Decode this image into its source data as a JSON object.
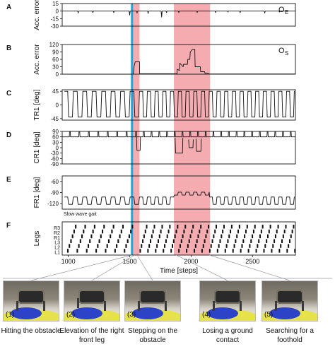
{
  "chart_data": {
    "type": "line",
    "xlabel": "Time [steps]",
    "xlim": [
      950,
      2850
    ],
    "xticks": [
      1000,
      1500,
      2000,
      2500
    ],
    "highlights": [
      {
        "from": 1510,
        "to": 1528,
        "color": "#21a4dc"
      },
      {
        "from": 1528,
        "to": 1580,
        "color": "#f4a3a8"
      },
      {
        "from": 1860,
        "to": 2155,
        "color": "#f4a3a8"
      }
    ],
    "panels": [
      {
        "letter": "A",
        "ylabel": "Acc. error",
        "inset_label": "O",
        "inset_sub": "E",
        "ylim": [
          -30,
          15
        ],
        "yticks": [
          15,
          0,
          -15,
          -30
        ],
        "baseline": 0,
        "events": [
          [
            1080,
            -4
          ],
          [
            1200,
            -3
          ],
          [
            1370,
            -3
          ],
          [
            1500,
            -8
          ],
          [
            1560,
            -4
          ],
          [
            1650,
            -5
          ],
          [
            1760,
            -12
          ],
          [
            1800,
            -3
          ],
          [
            1900,
            -3
          ],
          [
            2050,
            -3
          ],
          [
            2200,
            -3
          ],
          [
            2300,
            -2
          ],
          [
            2400,
            -3
          ],
          [
            2600,
            -4
          ],
          [
            2720,
            -2
          ]
        ]
      },
      {
        "letter": "B",
        "ylabel": "Acc. error",
        "inset_label": "O",
        "inset_sub": "S",
        "ylim": [
          0,
          120
        ],
        "yticks": [
          120,
          90,
          60,
          30,
          0
        ],
        "baseline": 0,
        "points": [
          [
            950,
            0
          ],
          [
            1530,
            0
          ],
          [
            1535,
            30
          ],
          [
            1545,
            50
          ],
          [
            1580,
            50
          ],
          [
            1581,
            2
          ],
          [
            1885,
            2
          ],
          [
            1888,
            20
          ],
          [
            1905,
            15
          ],
          [
            1908,
            45
          ],
          [
            1935,
            30
          ],
          [
            1938,
            40
          ],
          [
            1970,
            40
          ],
          [
            1973,
            60
          ],
          [
            1990,
            60
          ],
          [
            1993,
            90
          ],
          [
            2010,
            100
          ],
          [
            2030,
            100
          ],
          [
            2033,
            30
          ],
          [
            2075,
            30
          ],
          [
            2078,
            10
          ],
          [
            2110,
            10
          ],
          [
            2113,
            4
          ],
          [
            2140,
            4
          ],
          [
            2143,
            1
          ],
          [
            2850,
            1
          ]
        ]
      },
      {
        "letter": "C",
        "ylabel": "TR1 [deg]",
        "ylim": [
          -50,
          50
        ],
        "yticks": [
          45,
          0,
          -45
        ],
        "wave": {
          "hi": 45,
          "lo": -40,
          "period_before": 77,
          "period_after": 63,
          "start": 968
        }
      },
      {
        "letter": "D",
        "ylabel": "CR1 [deg]",
        "ylim": [
          -90,
          90
        ],
        "yticks": [
          90,
          60,
          30,
          0,
          -30,
          -60,
          -90
        ],
        "spike": {
          "base": 60,
          "peak": 90,
          "period_before": 77,
          "period_after": 63,
          "start": 1008
        },
        "dips": [
          [
            1555,
            60,
            -15,
            1585
          ],
          [
            1870,
            55,
            -30,
            1930
          ],
          [
            1980,
            45,
            0,
            2015
          ],
          [
            2040,
            50,
            -20,
            2080
          ]
        ]
      },
      {
        "letter": "E",
        "ylabel": "FR1 [deg]",
        "ylim": [
          -135,
          -45
        ],
        "yticks": [
          -60,
          -90,
          -120
        ],
        "wave": {
          "hi": -102,
          "lo": -122,
          "period_before": 77,
          "period_after": 63,
          "start": 968
        },
        "lift": [
          [
            1860,
            2150,
            -80
          ]
        ],
        "note": "Slow wave gait"
      },
      {
        "letter": "F",
        "ylabel": "Legs",
        "row_labels": [
          "R3",
          "R2",
          "R1",
          "L3",
          "L2",
          "L1"
        ],
        "gait_before": {
          "period": 77,
          "start": 1000,
          "stance_len": 12
        },
        "gait_after": {
          "period": 63,
          "start": 1600,
          "stance_len": 10
        }
      }
    ]
  },
  "photos": [
    {
      "number": "(1)",
      "caption": "Hitting the obstacle"
    },
    {
      "number": "(2)",
      "caption": "Elevation of the right front leg"
    },
    {
      "number": "(3)",
      "caption": "Stepping on the obstacle"
    },
    {
      "number": "(4)",
      "caption": "Losing a ground contact"
    },
    {
      "number": "(5)",
      "caption": "Searching for a foothold"
    }
  ]
}
